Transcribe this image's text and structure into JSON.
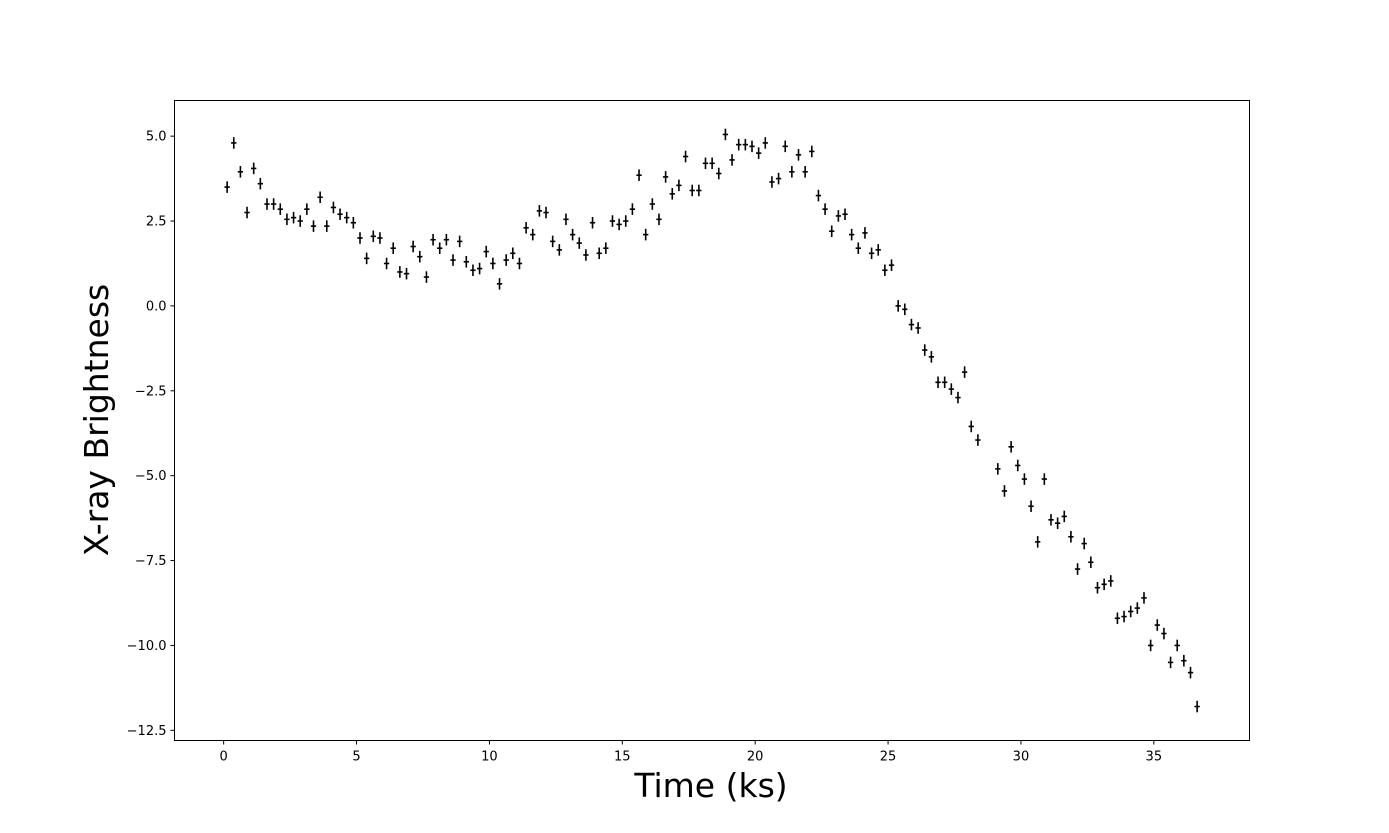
{
  "chart_data": {
    "type": "scatter",
    "title": "",
    "xlabel": "Time (ks)",
    "ylabel": "X-ray Brightness",
    "xlim": [
      -1.85,
      38.6
    ],
    "ylim": [
      -12.8,
      6.05
    ],
    "xticks": [
      0,
      5,
      10,
      15,
      20,
      25,
      30,
      35
    ],
    "yticks": [
      5.0,
      2.5,
      0.0,
      -2.5,
      -5.0,
      -7.5,
      -10.0,
      -12.5
    ],
    "xtick_labels": [
      "0",
      "5",
      "10",
      "15",
      "20",
      "25",
      "30",
      "35"
    ],
    "ytick_labels": [
      "5.0",
      "2.5",
      "0.0",
      "−2.5",
      "−5.0",
      "−7.5",
      "−10.0",
      "−12.5"
    ],
    "grid": false,
    "legend": false,
    "error_bars": {
      "x_halfwidth": 0.1,
      "y_halfwidth": 0.17
    },
    "marker_color": "#000000",
    "series": [
      {
        "x": [
          0.13,
          0.38,
          0.63,
          0.88,
          1.13,
          1.38,
          1.63,
          1.88,
          2.13,
          2.38,
          2.63,
          2.88,
          3.13,
          3.38,
          3.63,
          3.88,
          4.13,
          4.38,
          4.63,
          4.88,
          5.13,
          5.38,
          5.63,
          5.88,
          6.13,
          6.38,
          6.63,
          6.88,
          7.13,
          7.38,
          7.63,
          7.88,
          8.13,
          8.38,
          8.63,
          8.88,
          9.13,
          9.38,
          9.63,
          9.88,
          10.13,
          10.38,
          10.63,
          10.88,
          11.13,
          11.38,
          11.63,
          11.88,
          12.13,
          12.38,
          12.63,
          12.88,
          13.13,
          13.38,
          13.63,
          13.88,
          14.13,
          14.38,
          14.63,
          14.88,
          15.13,
          15.38,
          15.63,
          15.88,
          16.13,
          16.38,
          16.63,
          16.88,
          17.13,
          17.38,
          17.63,
          17.88,
          18.13,
          18.38,
          18.63,
          18.88,
          19.13,
          19.38,
          19.63,
          19.88,
          20.13,
          20.38,
          20.63,
          20.88,
          21.13,
          21.38,
          21.63,
          21.88,
          22.13,
          22.38,
          22.63,
          22.88,
          23.13,
          23.38,
          23.63,
          23.88,
          24.13,
          24.38,
          24.63,
          24.88,
          25.13,
          25.38,
          25.63,
          25.88,
          26.13,
          26.38,
          26.63,
          26.88,
          27.13,
          27.38,
          27.63,
          27.88,
          28.13,
          28.38,
          29.13,
          29.38,
          29.63,
          29.88,
          30.13,
          30.38,
          30.63,
          30.88,
          31.13,
          31.38,
          31.63,
          31.88,
          32.13,
          32.38,
          32.63,
          32.88,
          33.13,
          33.38,
          33.63,
          33.88,
          34.13,
          34.38,
          34.63,
          34.88,
          35.13,
          35.38,
          35.63,
          35.88,
          36.13,
          36.38,
          36.63
        ],
        "y": [
          3.5,
          4.8,
          3.95,
          2.75,
          4.05,
          3.6,
          3.0,
          3.0,
          2.85,
          2.55,
          2.6,
          2.5,
          2.85,
          2.35,
          3.2,
          2.35,
          2.9,
          2.7,
          2.6,
          2.45,
          2.0,
          1.4,
          2.05,
          2.0,
          1.25,
          1.7,
          1.0,
          0.95,
          1.75,
          1.45,
          0.85,
          1.95,
          1.7,
          1.95,
          1.35,
          1.9,
          1.3,
          1.05,
          1.1,
          1.6,
          1.25,
          0.65,
          1.35,
          1.55,
          1.25,
          2.3,
          2.1,
          2.8,
          2.75,
          1.9,
          1.65,
          2.55,
          2.1,
          1.85,
          1.5,
          2.45,
          1.55,
          1.7,
          2.5,
          2.4,
          2.5,
          2.85,
          3.85,
          2.1,
          3.0,
          2.55,
          3.8,
          3.3,
          3.55,
          4.4,
          3.4,
          3.4,
          4.2,
          4.2,
          3.9,
          5.05,
          4.3,
          4.75,
          4.75,
          4.7,
          4.5,
          4.8,
          3.65,
          3.75,
          4.7,
          3.95,
          4.45,
          3.95,
          4.55,
          3.25,
          2.85,
          2.2,
          2.65,
          2.7,
          2.1,
          1.7,
          2.15,
          1.55,
          1.65,
          1.05,
          1.2,
          0.0,
          -0.1,
          -0.55,
          -0.65,
          -1.3,
          -1.5,
          -2.25,
          -2.25,
          -2.45,
          -2.7,
          -1.95,
          -3.55,
          -3.95,
          -4.8,
          -5.45,
          -4.15,
          -4.7,
          -5.1,
          -5.9,
          -6.95,
          -5.1,
          -6.3,
          -6.4,
          -6.2,
          -6.8,
          -7.75,
          -7.0,
          -7.55,
          -8.3,
          -8.2,
          -8.1,
          -9.2,
          -9.15,
          -9.0,
          -8.9,
          -8.6,
          -10.0,
          -9.4,
          -9.65,
          -10.5,
          -10.0,
          -10.45,
          -10.8,
          -11.8
        ]
      }
    ]
  }
}
